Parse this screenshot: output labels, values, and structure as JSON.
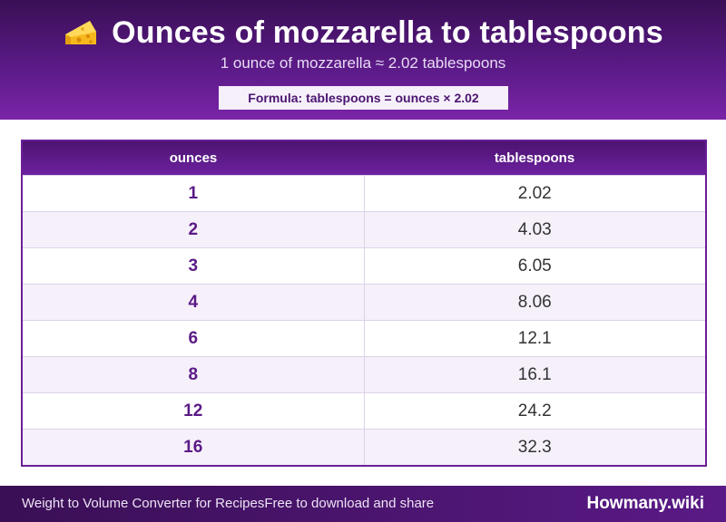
{
  "header": {
    "icon": "cheese-icon",
    "title": "Ounces of mozzarella to tablespoons",
    "subtitle": "1 ounce of mozzarella ≈ 2.02 tablespoons",
    "formula": "Formula: tablespoons = ounces × 2.02"
  },
  "table": {
    "columns": [
      "ounces",
      "tablespoons"
    ],
    "rows": [
      {
        "ounces": "1",
        "tablespoons": "2.02"
      },
      {
        "ounces": "2",
        "tablespoons": "4.03"
      },
      {
        "ounces": "3",
        "tablespoons": "6.05"
      },
      {
        "ounces": "4",
        "tablespoons": "8.06"
      },
      {
        "ounces": "6",
        "tablespoons": "12.1"
      },
      {
        "ounces": "8",
        "tablespoons": "16.1"
      },
      {
        "ounces": "12",
        "tablespoons": "24.2"
      },
      {
        "ounces": "16",
        "tablespoons": "32.3"
      }
    ]
  },
  "footer": {
    "left_text": "Weight to Volume Converter for RecipesFree to download and share",
    "brand": "Howmany.wiki"
  },
  "colors": {
    "accent": "#5a1a86",
    "header_dark": "#3a0f55",
    "row_alt": "#f5f0fa"
  }
}
